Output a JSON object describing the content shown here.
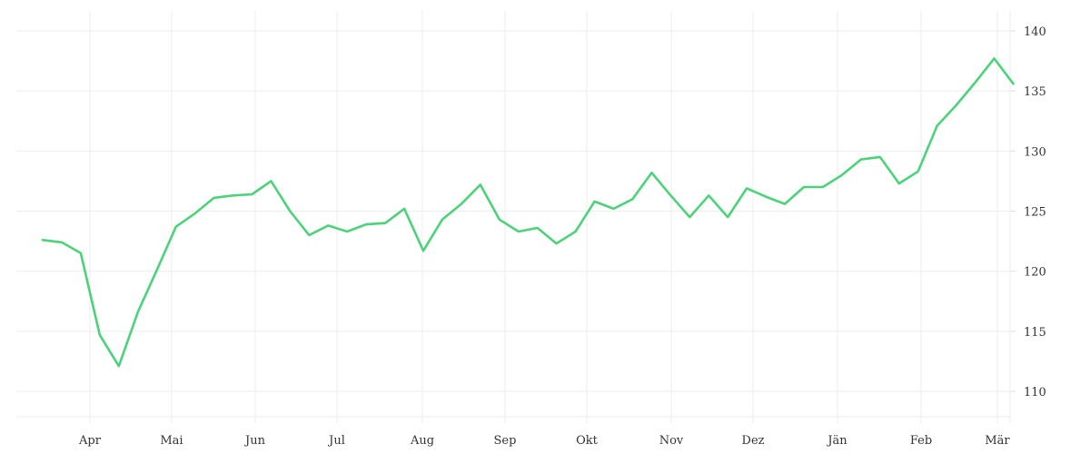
{
  "chart_data": {
    "type": "line",
    "title": "",
    "xlabel": "",
    "ylabel": "",
    "grid": true,
    "y_axis_position": "right",
    "ylim": [
      107.5,
      141.5
    ],
    "y_ticks": [
      110,
      115,
      120,
      125,
      130,
      135,
      140
    ],
    "y_tick_labels": [
      "110",
      "115",
      "120",
      "125",
      "130",
      "135",
      "140"
    ],
    "x_ticks": [
      "Apr",
      "Mai",
      "Jun",
      "Jul",
      "Aug",
      "Sep",
      "Okt",
      "Nov",
      "Dez",
      "Jän",
      "Feb",
      "Mär"
    ],
    "line_color": "#4cd37a",
    "grid_color": "#eeeeee",
    "series": [
      {
        "values": [
          122.6,
          122.4,
          121.5,
          114.7,
          112.1,
          116.6,
          120.1,
          123.7,
          124.8,
          126.1,
          126.3,
          126.4,
          127.5,
          125.0,
          123.0,
          123.8,
          123.3,
          123.9,
          124.0,
          125.2,
          121.7,
          124.3,
          125.6,
          127.2,
          124.3,
          123.3,
          123.6,
          122.3,
          123.3,
          125.8,
          125.2,
          126.0,
          128.2,
          126.3,
          124.5,
          126.3,
          124.5,
          126.9,
          126.2,
          125.6,
          127.0,
          127.0,
          128.0,
          129.3,
          129.5,
          127.3,
          128.3,
          132.1,
          133.8,
          135.7,
          137.7,
          135.6
        ]
      }
    ]
  }
}
